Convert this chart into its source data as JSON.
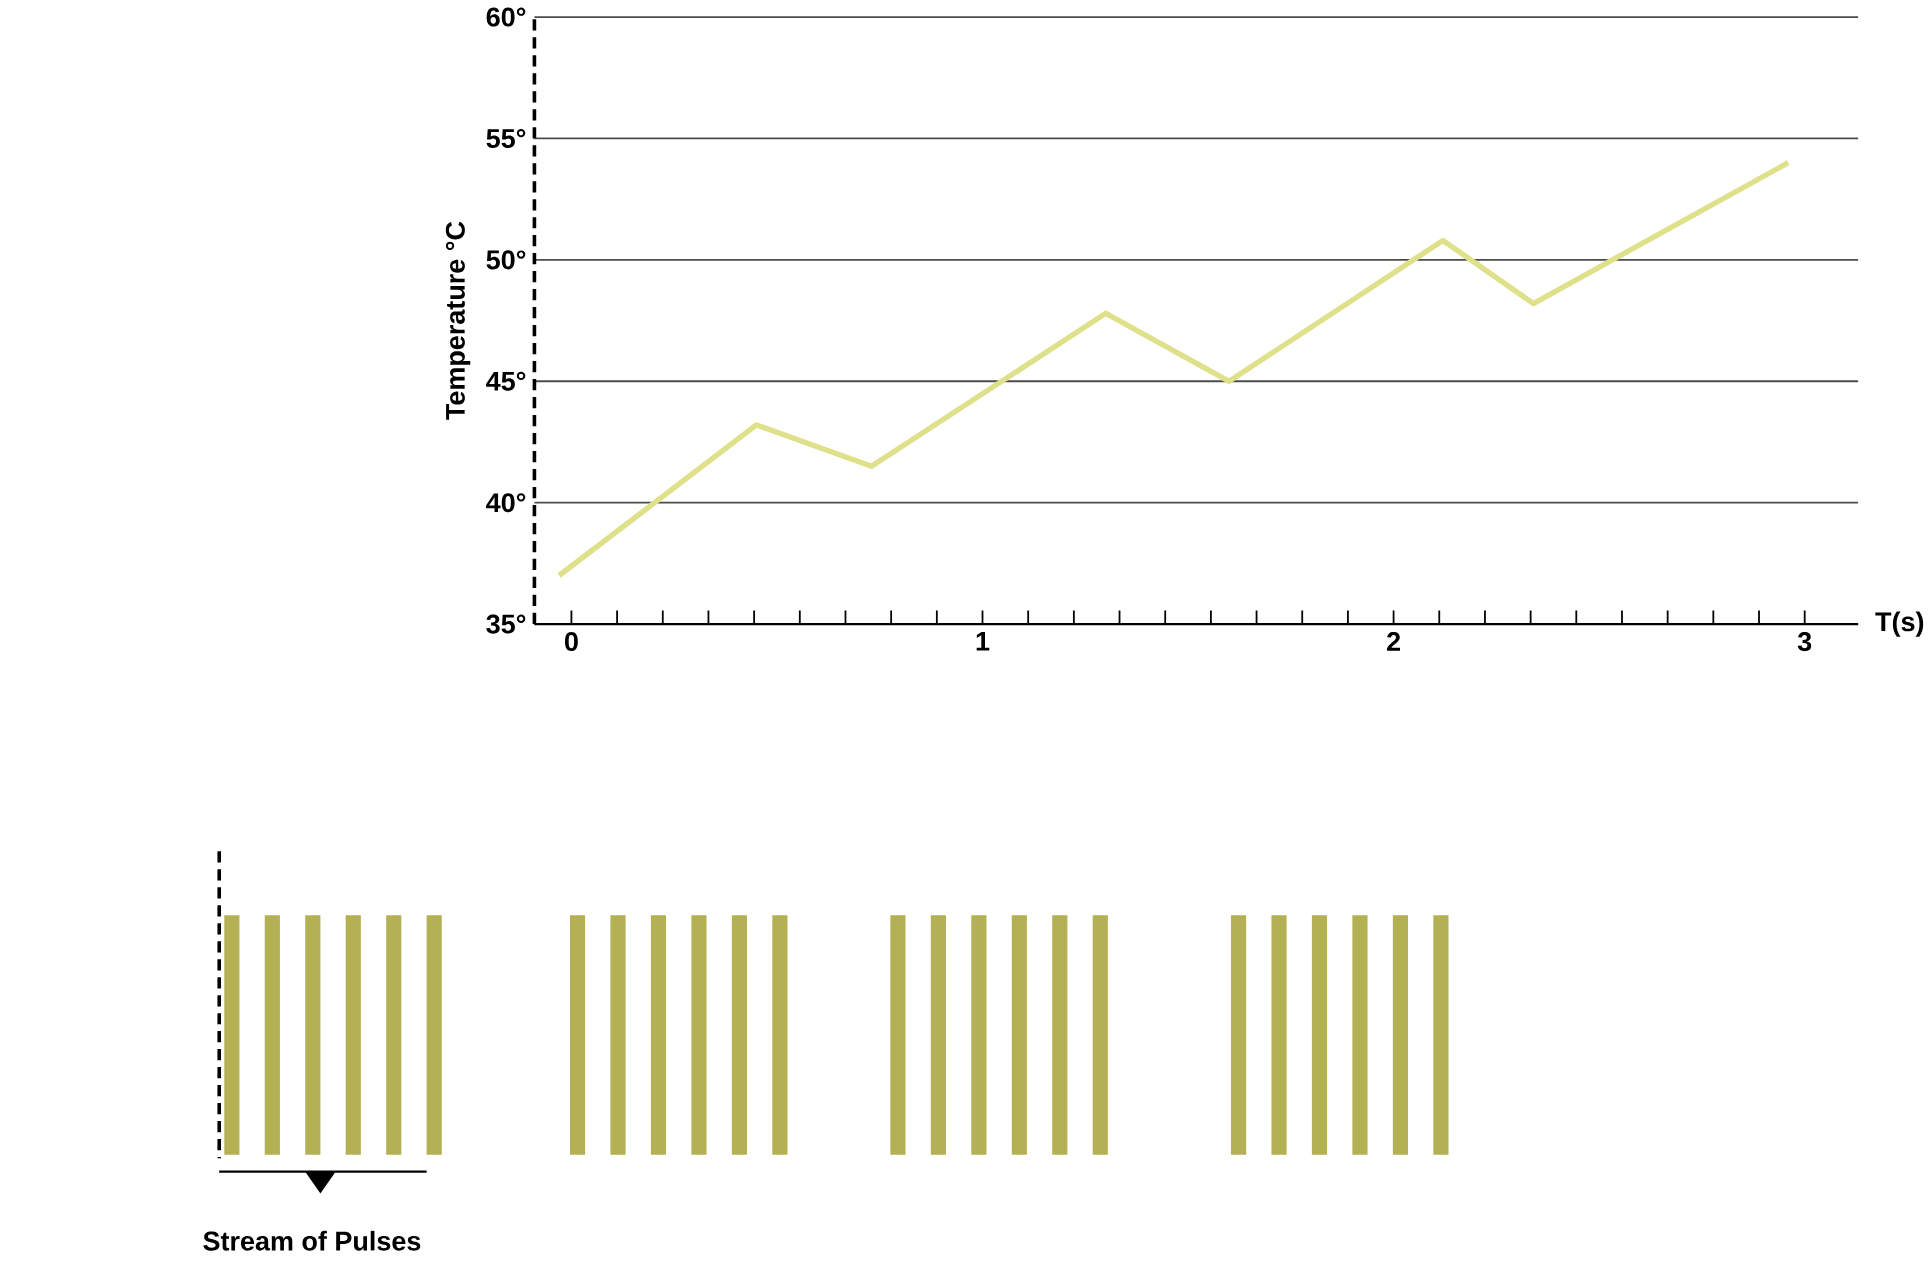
{
  "chart_data": {
    "type": "line",
    "xlabel": "T(s)",
    "ylabel": "Temperature °C",
    "x": [
      -0.03,
      0.45,
      0.73,
      1.3,
      1.6,
      2.12,
      2.34,
      2.96
    ],
    "series": [
      {
        "color": "#dfe08a",
        "values": [
          37.0,
          43.2,
          41.5,
          47.8,
          45.0,
          50.8,
          48.2,
          54.0
        ]
      }
    ],
    "xlim": [
      -0.09,
      3.13
    ],
    "xticks": [
      0,
      1,
      2,
      3
    ],
    "ylim": [
      35,
      60
    ],
    "yticks": [
      {
        "value": 35,
        "label": "35°"
      },
      {
        "value": 40,
        "label": "40°"
      },
      {
        "value": 45,
        "label": "45°"
      },
      {
        "value": 50,
        "label": "50°"
      },
      {
        "value": 55,
        "label": "55°"
      },
      {
        "value": 60,
        "label": "60°"
      }
    ],
    "grid": "y",
    "marker": "none",
    "line_style": "solid",
    "annotations": [
      "Stream of Pulses"
    ]
  }
}
